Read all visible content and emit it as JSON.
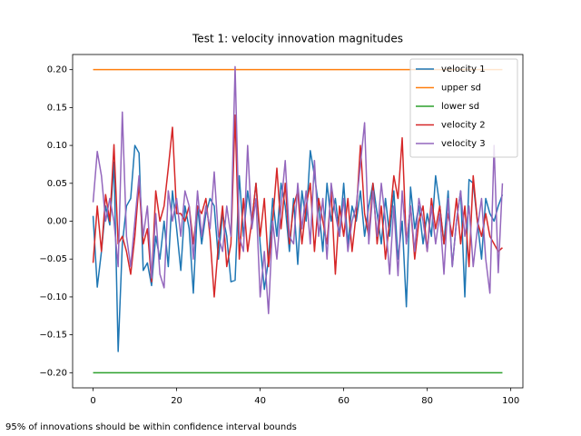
{
  "chart_data": {
    "type": "line",
    "title": "Test 1: velocity innovation magnitudes",
    "annotation": "95% of innovations should be within confidence interval bounds",
    "x": [
      0,
      1,
      2,
      3,
      4,
      5,
      6,
      7,
      8,
      9,
      10,
      11,
      12,
      13,
      14,
      15,
      16,
      17,
      18,
      19,
      20,
      21,
      22,
      23,
      24,
      25,
      26,
      27,
      28,
      29,
      30,
      31,
      32,
      33,
      34,
      35,
      36,
      37,
      38,
      39,
      40,
      41,
      42,
      43,
      44,
      45,
      46,
      47,
      48,
      49,
      50,
      51,
      52,
      53,
      54,
      55,
      56,
      57,
      58,
      59,
      60,
      61,
      62,
      63,
      64,
      65,
      66,
      67,
      68,
      69,
      70,
      71,
      72,
      73,
      74,
      75,
      76,
      77,
      78,
      79,
      80,
      81,
      82,
      83,
      84,
      85,
      86,
      87,
      88,
      89,
      90,
      91,
      92,
      93,
      94,
      95,
      96,
      97,
      98
    ],
    "series": [
      {
        "name": "velocity 1",
        "color": "#1f77b4",
        "values": [
          0.007,
          -0.087,
          -0.04,
          0.02,
          -0.005,
          0.078,
          -0.172,
          -0.03,
          0.02,
          0.03,
          0.1,
          0.09,
          -0.065,
          -0.055,
          -0.085,
          -0.02,
          -0.05,
          0.0,
          -0.06,
          0.04,
          -0.01,
          -0.065,
          0.02,
          -0.01,
          -0.095,
          0.02,
          -0.03,
          0.01,
          0.03,
          0.02,
          -0.05,
          0.01,
          -0.02,
          -0.08,
          -0.078,
          0.06,
          -0.02,
          0.04,
          0.0,
          0.05,
          -0.03,
          -0.09,
          -0.05,
          0.03,
          -0.02,
          0.05,
          0.02,
          -0.04,
          0.03,
          -0.057,
          0.04,
          0.0,
          0.093,
          0.06,
          0.02,
          -0.04,
          0.05,
          0.0,
          0.03,
          -0.02,
          0.05,
          -0.03,
          0.02,
          0.0,
          0.04,
          -0.02,
          0.02,
          0.05,
          0.01,
          -0.03,
          0.03,
          -0.02,
          0.04,
          -0.05,
          0.0,
          -0.113,
          0.045,
          -0.01,
          0.02,
          -0.03,
          0.01,
          -0.02,
          0.06,
          0.02,
          -0.03,
          0.04,
          -0.06,
          0.0,
          0.04,
          -0.1,
          0.055,
          0.05,
          0.0,
          -0.05,
          0.03,
          0.01,
          0.0,
          0.02,
          0.035
        ]
      },
      {
        "name": "upper sd",
        "color": "#ff7f0e",
        "values": [
          0.2,
          0.2,
          0.2,
          0.2,
          0.2,
          0.2,
          0.2,
          0.2,
          0.2,
          0.2,
          0.2,
          0.2,
          0.2,
          0.2,
          0.2,
          0.2,
          0.2,
          0.2,
          0.2,
          0.2,
          0.2,
          0.2,
          0.2,
          0.2,
          0.2,
          0.2,
          0.2,
          0.2,
          0.2,
          0.2,
          0.2,
          0.2,
          0.2,
          0.2,
          0.2,
          0.2,
          0.2,
          0.2,
          0.2,
          0.2,
          0.2,
          0.2,
          0.2,
          0.2,
          0.2,
          0.2,
          0.2,
          0.2,
          0.2,
          0.2,
          0.2,
          0.2,
          0.2,
          0.2,
          0.2,
          0.2,
          0.2,
          0.2,
          0.2,
          0.2,
          0.2,
          0.2,
          0.2,
          0.2,
          0.2,
          0.2,
          0.2,
          0.2,
          0.2,
          0.2,
          0.2,
          0.2,
          0.2,
          0.2,
          0.2,
          0.2,
          0.2,
          0.2,
          0.2,
          0.2,
          0.2,
          0.2,
          0.2,
          0.2,
          0.2,
          0.2,
          0.2,
          0.2,
          0.2,
          0.2,
          0.2,
          0.2,
          0.2,
          0.2,
          0.2,
          0.2,
          0.2,
          0.2,
          0.2
        ]
      },
      {
        "name": "lower sd",
        "color": "#2ca02c",
        "values": [
          -0.2,
          -0.2,
          -0.2,
          -0.2,
          -0.2,
          -0.2,
          -0.2,
          -0.2,
          -0.2,
          -0.2,
          -0.2,
          -0.2,
          -0.2,
          -0.2,
          -0.2,
          -0.2,
          -0.2,
          -0.2,
          -0.2,
          -0.2,
          -0.2,
          -0.2,
          -0.2,
          -0.2,
          -0.2,
          -0.2,
          -0.2,
          -0.2,
          -0.2,
          -0.2,
          -0.2,
          -0.2,
          -0.2,
          -0.2,
          -0.2,
          -0.2,
          -0.2,
          -0.2,
          -0.2,
          -0.2,
          -0.2,
          -0.2,
          -0.2,
          -0.2,
          -0.2,
          -0.2,
          -0.2,
          -0.2,
          -0.2,
          -0.2,
          -0.2,
          -0.2,
          -0.2,
          -0.2,
          -0.2,
          -0.2,
          -0.2,
          -0.2,
          -0.2,
          -0.2,
          -0.2,
          -0.2,
          -0.2,
          -0.2,
          -0.2,
          -0.2,
          -0.2,
          -0.2,
          -0.2,
          -0.2,
          -0.2,
          -0.2,
          -0.2,
          -0.2,
          -0.2,
          -0.2,
          -0.2,
          -0.2,
          -0.2,
          -0.2,
          -0.2,
          -0.2,
          -0.2,
          -0.2,
          -0.2,
          -0.2,
          -0.2,
          -0.2,
          -0.2,
          -0.2,
          -0.2,
          -0.2,
          -0.2,
          -0.2,
          -0.2,
          -0.2,
          -0.2,
          -0.2,
          -0.2
        ]
      },
      {
        "name": "velocity 2",
        "color": "#d62728",
        "values": [
          -0.055,
          0.02,
          -0.04,
          0.035,
          0.0,
          0.101,
          -0.03,
          -0.02,
          -0.04,
          -0.07,
          -0.02,
          0.05,
          -0.03,
          -0.01,
          -0.08,
          0.04,
          0.0,
          0.02,
          0.07,
          0.124,
          0.01,
          0.01,
          0.0,
          0.02,
          -0.03,
          0.02,
          0.01,
          0.03,
          -0.02,
          -0.1,
          -0.03,
          0.02,
          -0.06,
          -0.03,
          0.14,
          -0.05,
          0.03,
          -0.04,
          0.0,
          0.05,
          -0.02,
          0.03,
          -0.06,
          0.0,
          0.07,
          -0.01,
          0.05,
          -0.03,
          0.02,
          0.04,
          -0.03,
          0.02,
          0.05,
          -0.04,
          0.03,
          0.0,
          -0.03,
          0.04,
          -0.07,
          0.02,
          -0.02,
          0.03,
          -0.04,
          0.01,
          0.1,
          0.01,
          -0.02,
          0.05,
          -0.03,
          0.02,
          -0.05,
          0.0,
          0.06,
          0.03,
          0.11,
          -0.03,
          0.02,
          -0.05,
          0.0,
          0.02,
          -0.04,
          0.03,
          -0.01,
          0.02,
          -0.03,
          0.01,
          -0.02,
          0.03,
          -0.03,
          0.02,
          -0.06,
          0.06,
          0.0,
          -0.02,
          0.01,
          -0.02,
          -0.03,
          -0.04,
          -0.035
        ]
      },
      {
        "name": "velocity 3",
        "color": "#9467bd",
        "values": [
          0.025,
          0.092,
          0.06,
          0.0,
          0.03,
          0.0,
          -0.06,
          0.144,
          -0.02,
          -0.06,
          0.0,
          0.06,
          -0.02,
          0.02,
          -0.075,
          0.01,
          -0.07,
          -0.088,
          0.04,
          0.0,
          0.03,
          -0.02,
          0.04,
          0.02,
          -0.05,
          0.04,
          -0.02,
          0.02,
          -0.01,
          0.065,
          -0.02,
          -0.04,
          0.02,
          -0.02,
          0.204,
          -0.02,
          -0.04,
          0.1,
          -0.01,
          0.03,
          -0.1,
          -0.04,
          -0.122,
          0.0,
          -0.05,
          0.02,
          0.08,
          -0.02,
          -0.03,
          0.05,
          -0.01,
          0.04,
          -0.03,
          0.08,
          -0.02,
          0.03,
          -0.05,
          0.05,
          0.01,
          -0.02,
          0.03,
          -0.04,
          0.0,
          0.02,
          0.075,
          0.13,
          -0.03,
          0.04,
          -0.02,
          0.05,
          0.0,
          -0.07,
          0.02,
          -0.072,
          0.04,
          -0.03,
          0.02,
          -0.04,
          0.03,
          0.0,
          -0.04,
          0.02,
          -0.03,
          0.01,
          -0.07,
          0.03,
          -0.06,
          0.0,
          0.04,
          -0.02,
          0.02,
          -0.06,
          -0.01,
          0.03,
          -0.05,
          -0.095,
          0.1,
          -0.068,
          0.05
        ]
      }
    ],
    "xlim": [
      -4.9,
      102.9
    ],
    "xticks": [
      0,
      20,
      40,
      60,
      80,
      100
    ],
    "ylim": [
      -0.22,
      0.22
    ],
    "yticks": [
      {
        "value": -0.2,
        "label": "−0.20"
      },
      {
        "value": -0.15,
        "label": "−0.15"
      },
      {
        "value": -0.1,
        "label": "−0.10"
      },
      {
        "value": -0.05,
        "label": "−0.05"
      },
      {
        "value": 0,
        "label": "0.00"
      },
      {
        "value": 0.05,
        "label": "0.05"
      },
      {
        "value": 0.1,
        "label": "0.10"
      },
      {
        "value": 0.15,
        "label": "0.15"
      },
      {
        "value": 0.2,
        "label": "0.20"
      }
    ],
    "legend": "upper right",
    "grid": false
  }
}
